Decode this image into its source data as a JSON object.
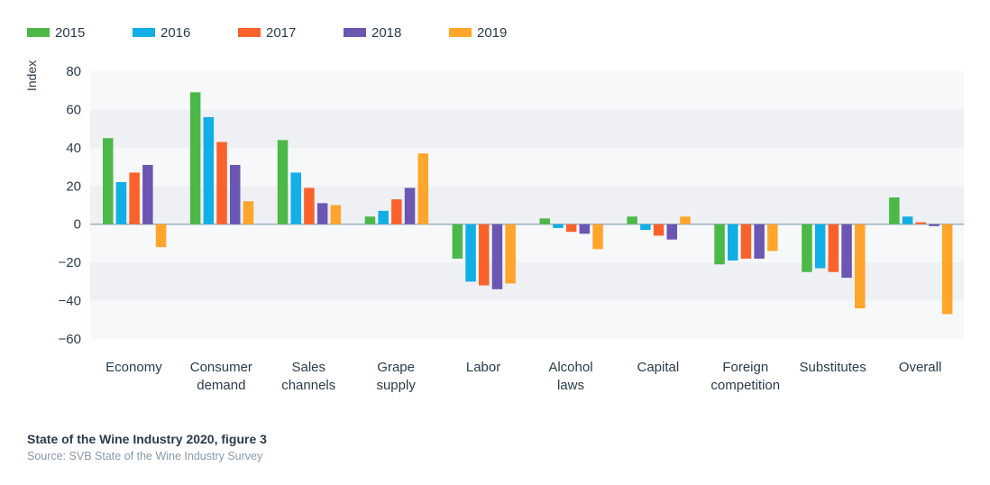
{
  "chart_data": {
    "type": "bar",
    "ylabel": "Index",
    "ylim": [
      -60,
      80
    ],
    "yticks": [
      80,
      60,
      40,
      20,
      0,
      -20,
      -40,
      -60
    ],
    "ytick_labels": [
      "80",
      "60",
      "40",
      "20",
      "0",
      "−20",
      "−40",
      "−60"
    ],
    "categories": [
      [
        "Economy"
      ],
      [
        "Consumer",
        "demand"
      ],
      [
        "Sales",
        "channels"
      ],
      [
        "Grape",
        "supply"
      ],
      [
        "Labor"
      ],
      [
        "Alcohol",
        "laws"
      ],
      [
        "Capital"
      ],
      [
        "Foreign",
        "competition"
      ],
      [
        "Substitutes"
      ],
      [
        "Overall"
      ]
    ],
    "series": [
      {
        "name": "2015",
        "color": "#4cb848",
        "values": [
          45,
          69,
          44,
          4,
          -18,
          3,
          4,
          -21,
          -25,
          14
        ]
      },
      {
        "name": "2016",
        "color": "#12aee6",
        "values": [
          22,
          56,
          27,
          7,
          -30,
          -2,
          -3,
          -19,
          -23,
          4
        ]
      },
      {
        "name": "2017",
        "color": "#f9622b",
        "values": [
          27,
          43,
          19,
          13,
          -32,
          -4,
          -6,
          -18,
          -25,
          1
        ]
      },
      {
        "name": "2018",
        "color": "#6b56b2",
        "values": [
          31,
          31,
          11,
          19,
          -34,
          -5,
          -8,
          -18,
          -28,
          -1
        ]
      },
      {
        "name": "2019",
        "color": "#ffa52b",
        "values": [
          -12,
          12,
          10,
          37,
          -31,
          -13,
          4,
          -14,
          -44,
          -47
        ]
      }
    ],
    "grid": "alternating horizontal bands",
    "legend": "top-left"
  },
  "footer": {
    "title": "State of the Wine Industry 2020, figure 3",
    "source": "Source: SVB State of the Wine Industry Survey"
  }
}
